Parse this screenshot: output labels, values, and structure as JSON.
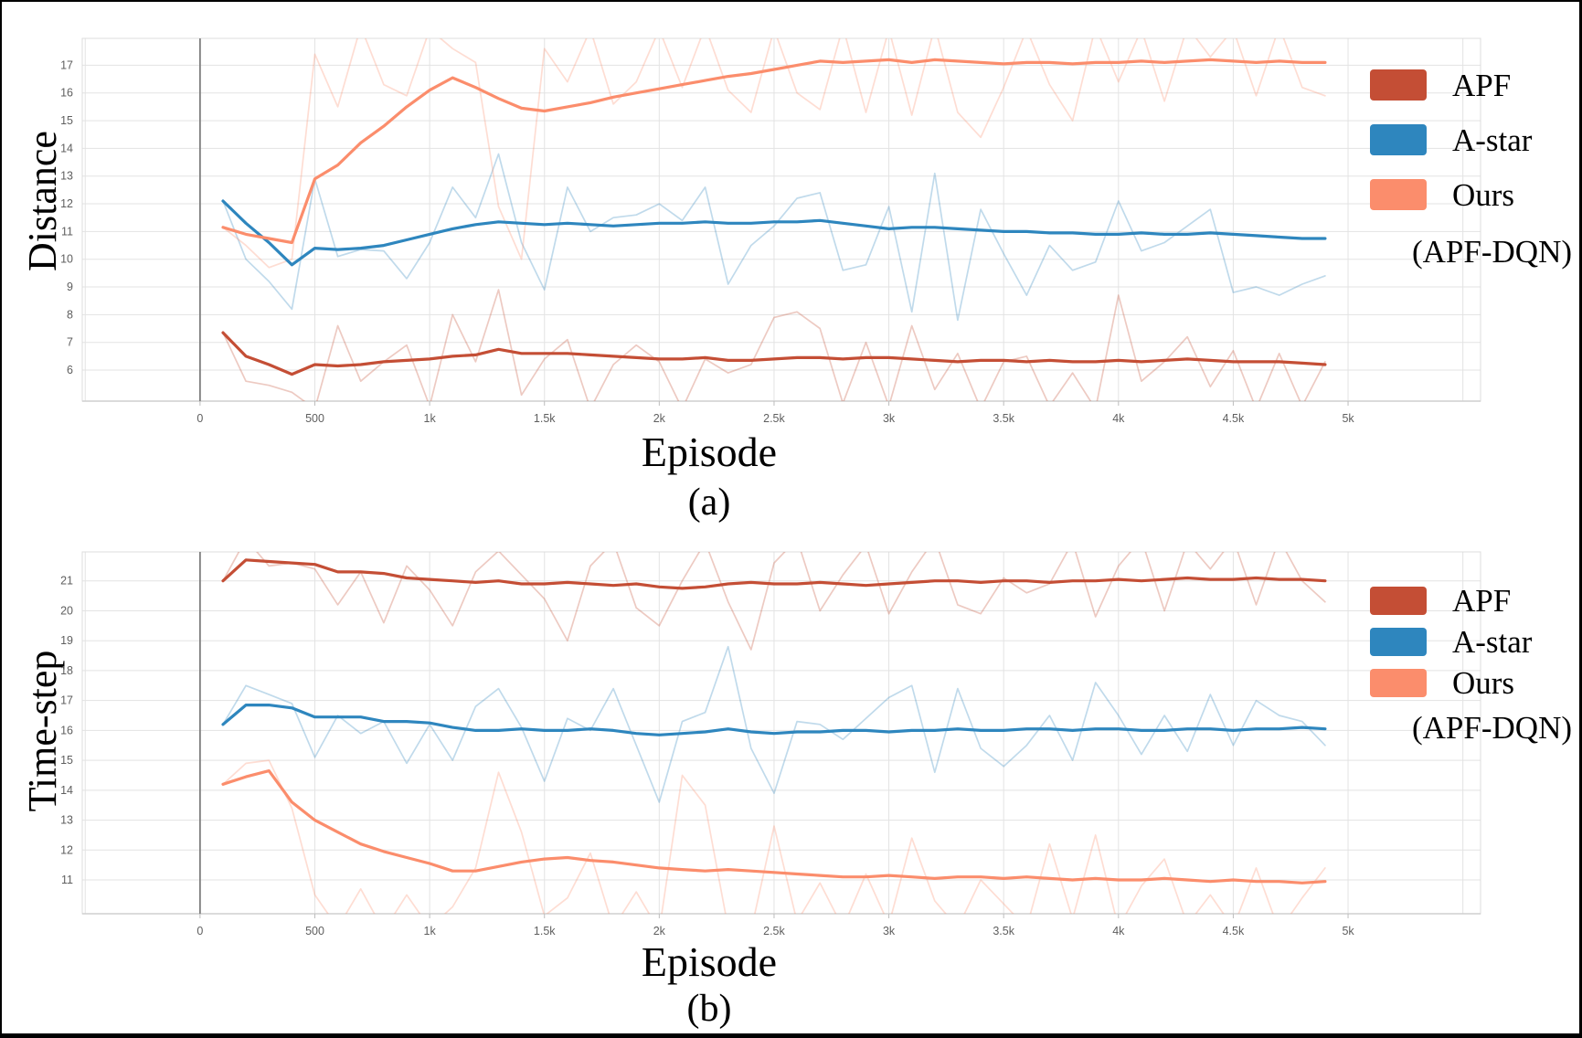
{
  "page": {
    "background": "#ffffff",
    "border_color": "#000000"
  },
  "colors": {
    "apf": "#c44e35",
    "astar": "#2e86be",
    "ours": "#fb8d6c",
    "grid": "#e3e3e3",
    "plot_border": "#dcdcdc",
    "axis_line": "#cfcfcf",
    "zero_line": "#7f7f7f",
    "tick_stub": "#bdbdbd",
    "tick_text": "#5f5f5f",
    "raw_opacity": 0.3
  },
  "legend": {
    "items": [
      {
        "label": "APF",
        "color_key": "apf"
      },
      {
        "label": "A-star",
        "color_key": "astar"
      },
      {
        "label": "Ours",
        "color_key": "ours"
      }
    ],
    "extra_line": "(APF-DQN)"
  },
  "chart_data": [
    {
      "id": "a",
      "type": "line",
      "caption": "(a)",
      "xlabel": "Episode",
      "ylabel": "Distance",
      "xlim": [
        -513,
        5577
      ],
      "ylim": [
        4.88,
        17.97
      ],
      "x_ticks": [
        {
          "v": 0,
          "label": "0"
        },
        {
          "v": 500,
          "label": "500"
        },
        {
          "v": 1000,
          "label": "1k"
        },
        {
          "v": 1500,
          "label": "1.5k"
        },
        {
          "v": 2000,
          "label": "2k"
        },
        {
          "v": 2500,
          "label": "2.5k"
        },
        {
          "v": 3000,
          "label": "3k"
        },
        {
          "v": 3500,
          "label": "3.5k"
        },
        {
          "v": 4000,
          "label": "4k"
        },
        {
          "v": 4500,
          "label": "4.5k"
        },
        {
          "v": 5000,
          "label": "5k"
        }
      ],
      "y_ticks": [
        6,
        7,
        8,
        9,
        10,
        11,
        12,
        13,
        14,
        15,
        16,
        17
      ],
      "series": [
        {
          "name": "APF (raw)",
          "color_key": "apf",
          "style": "raw",
          "x_start": 100,
          "x_step": 100,
          "values": [
            7.35,
            5.6,
            5.45,
            5.2,
            4.6,
            7.6,
            5.6,
            6.3,
            6.9,
            4.7,
            8.0,
            6.3,
            8.9,
            5.1,
            6.4,
            7.1,
            4.6,
            6.2,
            6.9,
            6.3,
            4.6,
            6.4,
            5.9,
            6.2,
            7.9,
            8.1,
            7.5,
            4.8,
            7.0,
            4.7,
            7.6,
            5.3,
            6.6,
            4.6,
            6.3,
            6.5,
            4.7,
            5.9,
            4.6,
            8.7,
            5.6,
            6.3,
            7.2,
            5.4,
            6.7,
            4.6,
            6.6,
            4.7,
            6.3
          ]
        },
        {
          "name": "A-star (raw)",
          "color_key": "astar",
          "style": "raw",
          "x_start": 100,
          "x_step": 100,
          "values": [
            12.1,
            10.0,
            9.2,
            8.2,
            12.9,
            10.1,
            10.35,
            10.3,
            9.3,
            10.6,
            12.6,
            11.5,
            13.8,
            10.6,
            8.9,
            12.6,
            11.0,
            11.5,
            11.6,
            12.0,
            11.4,
            12.6,
            9.1,
            10.5,
            11.2,
            12.2,
            12.4,
            9.6,
            9.8,
            11.9,
            8.1,
            13.1,
            7.8,
            11.8,
            10.2,
            8.7,
            10.5,
            9.6,
            9.9,
            12.1,
            10.3,
            10.6,
            11.2,
            11.8,
            8.8,
            9.0,
            8.7,
            9.1,
            9.4
          ]
        },
        {
          "name": "Ours (raw)",
          "color_key": "ours",
          "style": "raw",
          "x_start": 100,
          "x_step": 100,
          "values": [
            11.15,
            10.5,
            9.7,
            10.0,
            17.4,
            15.5,
            18.4,
            16.3,
            15.9,
            18.3,
            17.6,
            17.1,
            11.9,
            10.0,
            17.6,
            16.4,
            18.3,
            15.6,
            16.4,
            18.3,
            16.2,
            18.4,
            16.1,
            15.3,
            18.3,
            16.0,
            15.4,
            18.4,
            15.3,
            18.3,
            15.2,
            18.4,
            15.3,
            14.4,
            16.2,
            18.3,
            16.3,
            15.0,
            18.4,
            16.4,
            18.3,
            15.7,
            18.4,
            17.3,
            18.3,
            15.9,
            18.4,
            16.2,
            15.9
          ]
        },
        {
          "name": "APF",
          "color_key": "apf",
          "style": "smooth",
          "x_start": 100,
          "x_step": 100,
          "values": [
            7.35,
            6.5,
            6.2,
            5.85,
            6.2,
            6.15,
            6.2,
            6.3,
            6.35,
            6.4,
            6.5,
            6.55,
            6.75,
            6.6,
            6.6,
            6.6,
            6.55,
            6.5,
            6.45,
            6.4,
            6.4,
            6.45,
            6.35,
            6.35,
            6.4,
            6.45,
            6.45,
            6.4,
            6.45,
            6.45,
            6.4,
            6.35,
            6.3,
            6.35,
            6.35,
            6.3,
            6.35,
            6.3,
            6.3,
            6.35,
            6.3,
            6.35,
            6.4,
            6.35,
            6.3,
            6.3,
            6.3,
            6.25,
            6.2
          ]
        },
        {
          "name": "A-star",
          "color_key": "astar",
          "style": "smooth",
          "x_start": 100,
          "x_step": 100,
          "values": [
            12.1,
            11.3,
            10.6,
            9.8,
            10.4,
            10.35,
            10.4,
            10.5,
            10.7,
            10.9,
            11.1,
            11.25,
            11.35,
            11.3,
            11.25,
            11.3,
            11.25,
            11.2,
            11.25,
            11.3,
            11.3,
            11.35,
            11.3,
            11.3,
            11.35,
            11.35,
            11.4,
            11.3,
            11.2,
            11.1,
            11.15,
            11.15,
            11.1,
            11.05,
            11.0,
            11.0,
            10.95,
            10.95,
            10.9,
            10.9,
            10.95,
            10.9,
            10.9,
            10.95,
            10.9,
            10.85,
            10.8,
            10.75,
            10.75
          ]
        },
        {
          "name": "Ours (APF-DQN)",
          "color_key": "ours",
          "style": "smooth",
          "x_start": 100,
          "x_step": 100,
          "values": [
            11.15,
            10.9,
            10.75,
            10.6,
            12.9,
            13.4,
            14.2,
            14.8,
            15.5,
            16.1,
            16.55,
            16.2,
            15.8,
            15.45,
            15.35,
            15.5,
            15.65,
            15.85,
            16.0,
            16.15,
            16.3,
            16.45,
            16.6,
            16.7,
            16.85,
            17.0,
            17.15,
            17.1,
            17.15,
            17.2,
            17.1,
            17.2,
            17.15,
            17.1,
            17.05,
            17.1,
            17.1,
            17.05,
            17.1,
            17.1,
            17.15,
            17.1,
            17.15,
            17.2,
            17.15,
            17.1,
            17.15,
            17.1,
            17.1
          ]
        }
      ]
    },
    {
      "id": "b",
      "type": "line",
      "caption": "(b)",
      "xlabel": "Episode",
      "ylabel": "Time-step",
      "xlim": [
        -513,
        5577
      ],
      "ylim": [
        9.87,
        21.97
      ],
      "x_ticks": [
        {
          "v": 0,
          "label": "0"
        },
        {
          "v": 500,
          "label": "500"
        },
        {
          "v": 1000,
          "label": "1k"
        },
        {
          "v": 1500,
          "label": "1.5k"
        },
        {
          "v": 2000,
          "label": "2k"
        },
        {
          "v": 2500,
          "label": "2.5k"
        },
        {
          "v": 3000,
          "label": "3k"
        },
        {
          "v": 3500,
          "label": "3.5k"
        },
        {
          "v": 4000,
          "label": "4k"
        },
        {
          "v": 4500,
          "label": "4.5k"
        },
        {
          "v": 5000,
          "label": "5k"
        }
      ],
      "y_ticks": [
        11,
        12,
        13,
        14,
        15,
        16,
        17,
        18,
        19,
        20,
        21
      ],
      "series": [
        {
          "name": "APF (raw)",
          "color_key": "apf",
          "style": "raw",
          "x_start": 100,
          "x_step": 100,
          "values": [
            21.0,
            22.4,
            21.5,
            21.6,
            21.4,
            20.2,
            21.3,
            19.6,
            21.5,
            20.7,
            19.5,
            21.3,
            22.0,
            21.2,
            20.4,
            19.0,
            21.5,
            22.3,
            20.1,
            19.5,
            21.0,
            22.3,
            20.3,
            18.7,
            21.6,
            22.4,
            20.0,
            21.2,
            22.2,
            19.9,
            21.3,
            22.4,
            20.2,
            19.9,
            21.1,
            20.6,
            20.9,
            22.3,
            19.8,
            21.5,
            22.4,
            20.0,
            22.3,
            21.4,
            22.4,
            20.2,
            22.4,
            21.0,
            20.3
          ]
        },
        {
          "name": "A-star (raw)",
          "color_key": "astar",
          "style": "raw",
          "x_start": 100,
          "x_step": 100,
          "values": [
            16.2,
            17.5,
            17.2,
            16.9,
            15.1,
            16.5,
            15.9,
            16.3,
            14.9,
            16.2,
            15.0,
            16.8,
            17.4,
            16.1,
            14.3,
            16.4,
            16.0,
            17.4,
            15.5,
            13.6,
            16.3,
            16.6,
            18.8,
            15.4,
            13.9,
            16.3,
            16.2,
            15.7,
            16.4,
            17.1,
            17.5,
            14.6,
            17.4,
            15.4,
            14.8,
            15.5,
            16.5,
            15.0,
            17.6,
            16.5,
            15.2,
            16.5,
            15.3,
            17.2,
            15.5,
            17.0,
            16.5,
            16.3,
            15.5
          ]
        },
        {
          "name": "Ours (raw)",
          "color_key": "ours",
          "style": "raw",
          "x_start": 100,
          "x_step": 100,
          "values": [
            14.2,
            14.9,
            15.0,
            13.4,
            10.5,
            9.4,
            10.7,
            9.3,
            10.5,
            9.4,
            10.1,
            11.4,
            14.6,
            12.6,
            9.8,
            10.4,
            11.9,
            9.4,
            10.6,
            9.3,
            14.5,
            13.5,
            9.4,
            9.3,
            12.8,
            9.6,
            10.9,
            9.4,
            11.2,
            9.5,
            12.4,
            10.3,
            9.4,
            11.0,
            10.2,
            9.4,
            12.2,
            9.7,
            12.5,
            9.4,
            10.8,
            11.7,
            9.5,
            10.5,
            9.4,
            11.4,
            9.3,
            10.4,
            11.4
          ]
        },
        {
          "name": "APF",
          "color_key": "apf",
          "style": "smooth",
          "x_start": 100,
          "x_step": 100,
          "values": [
            21.0,
            21.7,
            21.65,
            21.6,
            21.55,
            21.3,
            21.3,
            21.25,
            21.1,
            21.05,
            21.0,
            20.95,
            21.0,
            20.9,
            20.9,
            20.95,
            20.9,
            20.85,
            20.9,
            20.8,
            20.75,
            20.8,
            20.9,
            20.95,
            20.9,
            20.9,
            20.95,
            20.9,
            20.85,
            20.9,
            20.95,
            21.0,
            21.0,
            20.95,
            21.0,
            21.0,
            20.95,
            21.0,
            21.0,
            21.05,
            21.0,
            21.05,
            21.1,
            21.05,
            21.05,
            21.1,
            21.05,
            21.05,
            21.0
          ]
        },
        {
          "name": "A-star",
          "color_key": "astar",
          "style": "smooth",
          "x_start": 100,
          "x_step": 100,
          "values": [
            16.2,
            16.85,
            16.85,
            16.75,
            16.45,
            16.45,
            16.45,
            16.3,
            16.3,
            16.25,
            16.1,
            16.0,
            16.0,
            16.05,
            16.0,
            16.0,
            16.05,
            16.0,
            15.9,
            15.85,
            15.9,
            15.95,
            16.05,
            15.95,
            15.9,
            15.95,
            15.95,
            16.0,
            16.0,
            15.95,
            16.0,
            16.0,
            16.05,
            16.0,
            16.0,
            16.05,
            16.05,
            16.0,
            16.05,
            16.05,
            16.0,
            16.0,
            16.05,
            16.05,
            16.0,
            16.05,
            16.05,
            16.1,
            16.05
          ]
        },
        {
          "name": "Ours (APF-DQN)",
          "color_key": "ours",
          "style": "smooth",
          "x_start": 100,
          "x_step": 100,
          "values": [
            14.2,
            14.45,
            14.65,
            13.6,
            13.0,
            12.6,
            12.2,
            11.95,
            11.75,
            11.55,
            11.3,
            11.3,
            11.45,
            11.6,
            11.7,
            11.75,
            11.65,
            11.6,
            11.5,
            11.4,
            11.35,
            11.3,
            11.35,
            11.3,
            11.25,
            11.2,
            11.15,
            11.1,
            11.1,
            11.15,
            11.1,
            11.05,
            11.1,
            11.1,
            11.05,
            11.1,
            11.05,
            11.0,
            11.05,
            11.0,
            11.0,
            11.05,
            11.0,
            10.95,
            11.0,
            10.95,
            10.95,
            10.9,
            10.95
          ]
        }
      ]
    }
  ]
}
